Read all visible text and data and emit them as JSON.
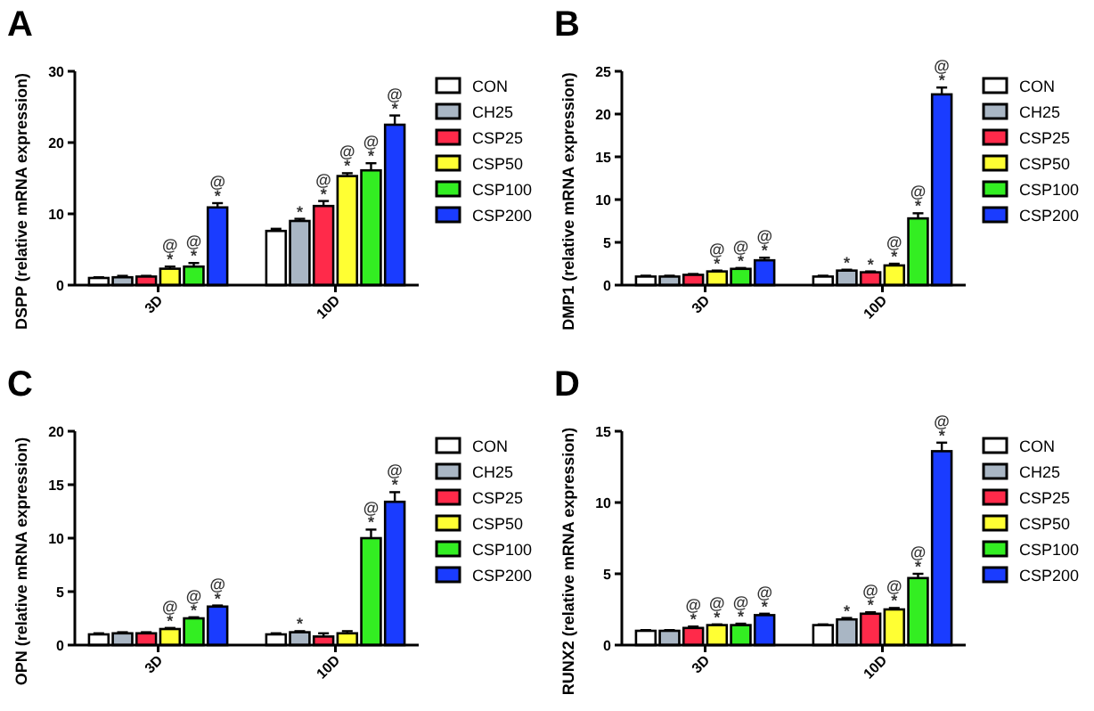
{
  "chart_data": [
    {
      "type": "bar",
      "title": "A",
      "ylabel": "DSPP (relative mRNA expression)",
      "categories": [
        "3D",
        "10D"
      ],
      "ylim": [
        0,
        30
      ],
      "yticks": [
        0,
        10,
        20,
        30
      ],
      "legend": "right",
      "series": [
        {
          "name": "CON",
          "color": "#ffffff",
          "values": [
            1.0,
            7.6
          ],
          "errors": [
            0.1,
            0.3
          ],
          "value_labels": [
            null,
            null
          ]
        },
        {
          "name": "CH25",
          "color": "#a9b6c4",
          "values": [
            1.1,
            9.0
          ],
          "errors": [
            0.2,
            0.3
          ],
          "value_labels": [
            null,
            "*"
          ]
        },
        {
          "name": "CSP25",
          "color": "#ff2a4a",
          "values": [
            1.2,
            11.1
          ],
          "errors": [
            0.1,
            0.7
          ],
          "value_labels": [
            null,
            "@*"
          ]
        },
        {
          "name": "CSP50",
          "color": "#ffff33",
          "values": [
            2.3,
            15.3
          ],
          "errors": [
            0.3,
            0.4
          ],
          "value_labels": [
            "@*",
            "@*"
          ]
        },
        {
          "name": "CSP100",
          "color": "#33ee22",
          "values": [
            2.6,
            16.1
          ],
          "errors": [
            0.5,
            1.0
          ],
          "value_labels": [
            "@*",
            "@*"
          ]
        },
        {
          "name": "CSP200",
          "color": "#1a3cff",
          "values": [
            10.9,
            22.5
          ],
          "errors": [
            0.6,
            1.3
          ],
          "value_labels": [
            "@*",
            "@*"
          ]
        }
      ]
    },
    {
      "type": "bar",
      "title": "B",
      "ylabel": "DMP1 (relative mRNA expression)",
      "categories": [
        "3D",
        "10D"
      ],
      "ylim": [
        0,
        25
      ],
      "yticks": [
        0,
        5,
        10,
        15,
        20,
        25
      ],
      "legend": "right",
      "series": [
        {
          "name": "CON",
          "color": "#ffffff",
          "values": [
            1.0,
            1.0
          ],
          "errors": [
            0.1,
            0.1
          ],
          "value_labels": [
            null,
            null
          ]
        },
        {
          "name": "CH25",
          "color": "#a9b6c4",
          "values": [
            1.0,
            1.7
          ],
          "errors": [
            0.1,
            0.1
          ],
          "value_labels": [
            null,
            "*"
          ]
        },
        {
          "name": "CSP25",
          "color": "#ff2a4a",
          "values": [
            1.2,
            1.5
          ],
          "errors": [
            0.1,
            0.1
          ],
          "value_labels": [
            null,
            "*"
          ]
        },
        {
          "name": "CSP50",
          "color": "#ffff33",
          "values": [
            1.6,
            2.3
          ],
          "errors": [
            0.1,
            0.2
          ],
          "value_labels": [
            "@*",
            "@*"
          ]
        },
        {
          "name": "CSP100",
          "color": "#33ee22",
          "values": [
            1.9,
            7.8
          ],
          "errors": [
            0.1,
            0.6
          ],
          "value_labels": [
            "@*",
            "@*"
          ]
        },
        {
          "name": "CSP200",
          "color": "#1a3cff",
          "values": [
            2.9,
            22.3
          ],
          "errors": [
            0.3,
            0.8
          ],
          "value_labels": [
            "@*",
            "@*"
          ]
        }
      ]
    },
    {
      "type": "bar",
      "title": "C",
      "ylabel": "OPN (relative mRNA expression)",
      "categories": [
        "3D",
        "10D"
      ],
      "ylim": [
        0,
        20
      ],
      "yticks": [
        0,
        5,
        10,
        15,
        20
      ],
      "legend": "right",
      "series": [
        {
          "name": "CON",
          "color": "#ffffff",
          "values": [
            1.0,
            1.0
          ],
          "errors": [
            0.1,
            0.1
          ],
          "value_labels": [
            null,
            null
          ]
        },
        {
          "name": "CH25",
          "color": "#a9b6c4",
          "values": [
            1.1,
            1.2
          ],
          "errors": [
            0.1,
            0.1
          ],
          "value_labels": [
            null,
            "*"
          ]
        },
        {
          "name": "CSP25",
          "color": "#ff2a4a",
          "values": [
            1.1,
            0.8
          ],
          "errors": [
            0.1,
            0.3
          ],
          "value_labels": [
            null,
            null
          ]
        },
        {
          "name": "CSP50",
          "color": "#ffff33",
          "values": [
            1.5,
            1.1
          ],
          "errors": [
            0.1,
            0.2
          ],
          "value_labels": [
            "@*",
            null
          ]
        },
        {
          "name": "CSP100",
          "color": "#33ee22",
          "values": [
            2.5,
            10.0
          ],
          "errors": [
            0.1,
            0.8
          ],
          "value_labels": [
            "@*",
            "@*"
          ]
        },
        {
          "name": "CSP200",
          "color": "#1a3cff",
          "values": [
            3.6,
            13.4
          ],
          "errors": [
            0.1,
            0.9
          ],
          "value_labels": [
            "@*",
            "@*"
          ]
        }
      ]
    },
    {
      "type": "bar",
      "title": "D",
      "ylabel": "RUNX2 (relative mRNA expression)",
      "categories": [
        "3D",
        "10D"
      ],
      "ylim": [
        0,
        15
      ],
      "yticks": [
        0,
        5,
        10,
        15
      ],
      "legend": "right",
      "series": [
        {
          "name": "CON",
          "color": "#ffffff",
          "values": [
            1.0,
            1.4
          ],
          "errors": [
            0.05,
            0.05
          ],
          "value_labels": [
            null,
            null
          ]
        },
        {
          "name": "CH25",
          "color": "#a9b6c4",
          "values": [
            1.0,
            1.8
          ],
          "errors": [
            0.05,
            0.1
          ],
          "value_labels": [
            null,
            "*"
          ]
        },
        {
          "name": "CSP25",
          "color": "#ff2a4a",
          "values": [
            1.2,
            2.2
          ],
          "errors": [
            0.1,
            0.1
          ],
          "value_labels": [
            "@*",
            "@*"
          ]
        },
        {
          "name": "CSP50",
          "color": "#ffff33",
          "values": [
            1.4,
            2.5
          ],
          "errors": [
            0.05,
            0.1
          ],
          "value_labels": [
            "@*",
            "@*"
          ]
        },
        {
          "name": "CSP100",
          "color": "#33ee22",
          "values": [
            1.4,
            4.7
          ],
          "errors": [
            0.1,
            0.3
          ],
          "value_labels": [
            "@*",
            "@*"
          ]
        },
        {
          "name": "CSP200",
          "color": "#1a3cff",
          "values": [
            2.1,
            13.6
          ],
          "errors": [
            0.1,
            0.6
          ],
          "value_labels": [
            "@*",
            "@*"
          ]
        }
      ]
    }
  ]
}
